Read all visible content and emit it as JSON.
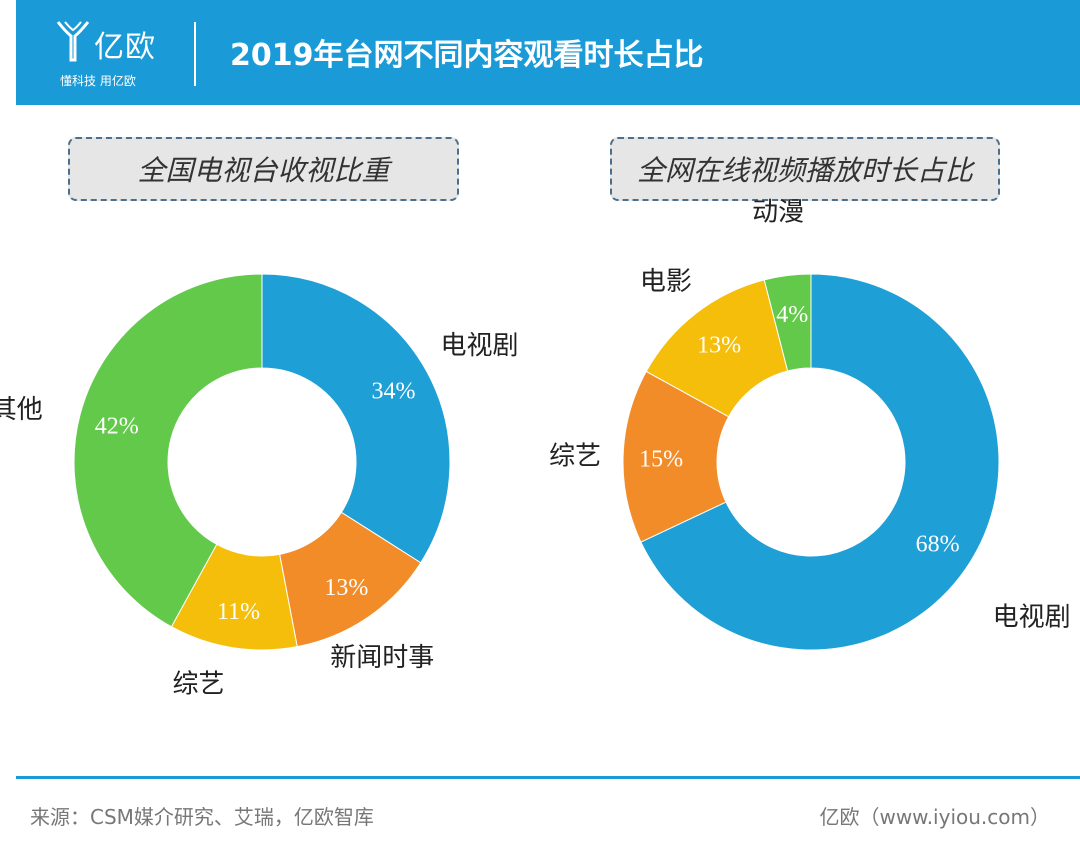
{
  "colors": {
    "header_bg": "#1a9ad7",
    "blue": "#1e9fd6",
    "orange": "#f28c28",
    "yellow": "#f4be0b",
    "green": "#63c94b"
  },
  "header": {
    "logo_icon": "yiou-logo-icon",
    "logo_name": "亿欧",
    "logo_slogan": "懂科技 用亿欧",
    "title": "2019年台网不同内容观看时长占比"
  },
  "chart_data": [
    {
      "type": "pie",
      "title": "全国电视台收视比重",
      "categories": [
        "电视剧",
        "新闻时事",
        "综艺",
        "其他"
      ],
      "values": [
        34,
        13,
        11,
        42
      ],
      "value_labels": [
        "34%",
        "13%",
        "11%",
        "42%"
      ],
      "colors": [
        "#1e9fd6",
        "#f28c28",
        "#f4be0b",
        "#63c94b"
      ]
    },
    {
      "type": "pie",
      "title": "全网在线视频播放时长占比",
      "categories": [
        "电视剧",
        "综艺",
        "电影",
        "动漫"
      ],
      "values": [
        68,
        15,
        13,
        4
      ],
      "value_labels": [
        "68%",
        "15%",
        "13%",
        "4%"
      ],
      "colors": [
        "#1e9fd6",
        "#f28c28",
        "#f4be0b",
        "#63c94b"
      ]
    }
  ],
  "footer": {
    "source": "来源：CSM媒介研究、艾瑞，亿欧智库",
    "brand": "亿欧（www.iyiou.com）"
  }
}
